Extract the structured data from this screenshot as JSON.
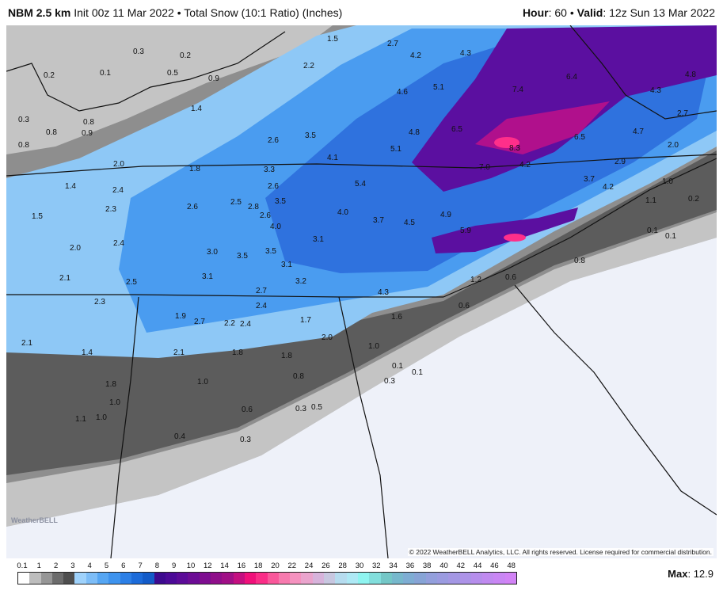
{
  "header": {
    "model": "NBM 2.5 km",
    "init": "Init 00z 11 Mar 2022",
    "bullet": "•",
    "product": "Total Snow (10:1 Ratio) (Inches)",
    "hour_label": "Hour",
    "hour": ": 60",
    "valid_label": "Valid",
    "valid": ": 12z Sun 13 Mar 2022"
  },
  "map": {
    "snow_labels": [
      "0.3",
      "0.2",
      "0.2",
      "0.1",
      "0.5",
      "0.9",
      "1.5",
      "2.2",
      "2.7",
      "4.2",
      "4.3",
      "6.4",
      "4.8",
      "1.4",
      "0.3",
      "0.8",
      "0.8",
      "0.9",
      "0.8",
      "2.6",
      "3.5",
      "4.6",
      "5.1",
      "7.4",
      "4.3",
      "2.7",
      "4.8",
      "6.5",
      "5.1",
      "8.3",
      "6.5",
      "4.7",
      "2.0",
      "2.0",
      "1.8",
      "3.3",
      "4.1",
      "7.0",
      "4.2",
      "2.9",
      "1.4",
      "2.4",
      "2.6",
      "5.4",
      "3.7",
      "4.2",
      "1.0",
      "2.3",
      "2.6",
      "2.5",
      "2.8",
      "3.5",
      "2.6",
      "4.0",
      "4.9",
      "1.1",
      "0.2",
      "1.5",
      "4.0",
      "3.7",
      "4.5",
      "5.9",
      "0.1",
      "0.1",
      "2.0",
      "2.4",
      "3.1",
      "3.0",
      "3.5",
      "3.5",
      "0.8",
      "2.1",
      "2.5",
      "3.1",
      "3.1",
      "3.2",
      "1.2",
      "0.6",
      "2.7",
      "4.3",
      "2.3",
      "2.4",
      "0.6",
      "1.9",
      "2.7",
      "2.2",
      "2.4",
      "1.7",
      "1.6",
      "2.1",
      "1.4",
      "2.1",
      "1.8",
      "1.8",
      "2.0",
      "1.0",
      "0.1",
      "0.1",
      "0.8",
      "1.8",
      "1.0",
      "0.3",
      "1.0",
      "0.6",
      "0.3",
      "0.5",
      "1.1",
      "1.0",
      "0.4",
      "0.3"
    ],
    "watermark": "WeatherBELL",
    "copyright": "© 2022 WeatherBELL Analytics, LLC. All rights reserved. License required for commercial distribution.",
    "colors": {
      "no_snow": "#eef1f9",
      "light_gray": "#c4c4c4",
      "gray": "#8e8e8e",
      "dark_gray": "#5c5c5c",
      "light_blue": "#8ec8f6",
      "blue": "#4a9cf0",
      "dark_blue": "#2f72de",
      "purple": "#5b0fa0",
      "magenta": "#b0108c",
      "pink": "#ff2f8a"
    }
  },
  "legend": {
    "labels": [
      "0.1",
      "1",
      "2",
      "3",
      "4",
      "5",
      "6",
      "7",
      "8",
      "9",
      "10",
      "12",
      "14",
      "16",
      "18",
      "20",
      "22",
      "24",
      "26",
      "28",
      "30",
      "32",
      "34",
      "36",
      "38",
      "40",
      "42",
      "44",
      "46",
      "48"
    ],
    "colors": [
      "#ffffff",
      "#bdbdbd",
      "#969696",
      "#6c6c6c",
      "#4e4e4e",
      "#9fd2fb",
      "#7dbdf7",
      "#56a6f3",
      "#3e93ee",
      "#2c7fe6",
      "#1c6bd9",
      "#135bc8",
      "#3d0a8f",
      "#4c0a97",
      "#5c0b98",
      "#6c0c95",
      "#7e0d90",
      "#8f0e8a",
      "#a00f86",
      "#c40f80",
      "#f0107a",
      "#fa2d87",
      "#f9579a",
      "#f77aae",
      "#f592bf",
      "#eaa4cd",
      "#d7b3db",
      "#c8c7e0",
      "#b6dcef",
      "#aee9f5",
      "#8ff4f0",
      "#82dedc",
      "#74c7c7",
      "#77b8cc",
      "#7eadd3",
      "#87a4d6",
      "#939fdc",
      "#9b9be0",
      "#a497e4",
      "#ad93e8",
      "#b68eec",
      "#c08af0",
      "#c986f4",
      "#d283f6"
    ],
    "max_label": "Max",
    "max_value": ": 12.9"
  }
}
